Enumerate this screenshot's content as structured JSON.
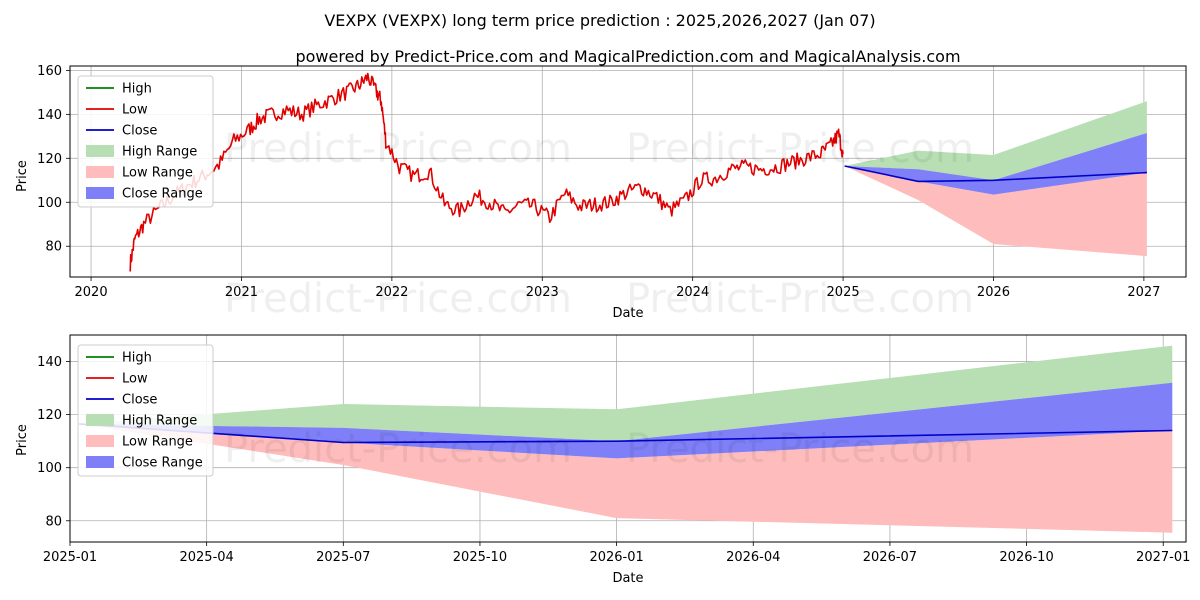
{
  "title_line1": "VEXPX (VEXPX) long term price prediction : 2025,2026,2027 (Jan 07)",
  "title_line2": "powered by Predict-Price.com and MagicalPrediction.com and MagicalAnalysis.com",
  "watermark": "Predict-Price.com",
  "colors": {
    "high": "#008000",
    "low": "#e00000",
    "close": "#0000cc",
    "high_range": "#b7dfb3",
    "low_range": "#ffbcbc",
    "close_range": "#7f7ff7"
  },
  "legend": [
    "High",
    "Low",
    "Close",
    "High Range",
    "Low Range",
    "Close Range"
  ],
  "chart_data": [
    {
      "type": "line",
      "name": "history-and-forecast",
      "xlabel": "Date",
      "ylabel": "Price",
      "xlim": [
        2019.86,
        2027.28
      ],
      "ylim": [
        66,
        162
      ],
      "x_ticks": [
        2020,
        2021,
        2022,
        2023,
        2024,
        2025,
        2026,
        2027
      ],
      "x_tick_labels": [
        "2020",
        "2021",
        "2022",
        "2023",
        "2024",
        "2025",
        "2026",
        "2027"
      ],
      "y_ticks": [
        80,
        100,
        120,
        140,
        160
      ],
      "y_tick_labels": [
        "80",
        "100",
        "120",
        "140",
        "160"
      ],
      "grid": true,
      "legend_position": "top-left",
      "history_close": {
        "x": [
          2020.26,
          2020.29,
          2020.35,
          2020.45,
          2020.55,
          2020.65,
          2020.75,
          2020.85,
          2020.95,
          2021.05,
          2021.12,
          2021.2,
          2021.3,
          2021.4,
          2021.5,
          2021.6,
          2021.7,
          2021.78,
          2021.84,
          2021.9,
          2021.93,
          2021.96,
          2022.05,
          2022.15,
          2022.25,
          2022.35,
          2022.45,
          2022.55,
          2022.65,
          2022.75,
          2022.85,
          2022.95,
          2023.05,
          2023.15,
          2023.25,
          2023.35,
          2023.45,
          2023.55,
          2023.65,
          2023.75,
          2023.85,
          2023.95,
          2024.05,
          2024.15,
          2024.25,
          2024.35,
          2024.45,
          2024.55,
          2024.65,
          2024.75,
          2024.85,
          2024.92,
          2024.97,
          2025.0
        ],
        "y": [
          72,
          83,
          90,
          97,
          103,
          108,
          112,
          117,
          128,
          133,
          138,
          140,
          142,
          140,
          144,
          147,
          150,
          153,
          157,
          150,
          146,
          128,
          116,
          112,
          114,
          99,
          96,
          103,
          100,
          95,
          99,
          98,
          93,
          104,
          98,
          99,
          100,
          104,
          107,
          103,
          96,
          101,
          110,
          111,
          115,
          116,
          115,
          116,
          118,
          120,
          122,
          126,
          131,
          122
        ]
      },
      "forecast": {
        "x": [
          2025.01,
          2025.5,
          2026.0,
          2027.02
        ],
        "close": [
          116.5,
          109.5,
          110.0,
          113.5
        ],
        "high_range_upper": [
          116.5,
          123.5,
          121.5,
          146.0
        ],
        "high_range_lower": [
          116.5,
          115.0,
          110.0,
          131.5
        ],
        "close_range_upper": [
          116.5,
          115.0,
          110.0,
          131.5
        ],
        "close_range_lower": [
          116.5,
          109.5,
          103.5,
          113.5
        ],
        "low_range_upper": [
          116.5,
          109.5,
          103.5,
          113.5
        ],
        "low_range_lower": [
          116.5,
          101.0,
          81.0,
          75.5
        ]
      }
    },
    {
      "type": "line",
      "name": "forecast-zoom",
      "xlabel": "Date",
      "ylabel": "Price",
      "xlim": [
        0,
        24.5
      ],
      "ylim": [
        72,
        150
      ],
      "x_ticks": [
        0,
        3,
        6,
        9,
        12,
        15,
        18,
        21,
        24
      ],
      "x_tick_labels": [
        "2025-01",
        "2025-04",
        "2025-07",
        "2025-10",
        "2026-01",
        "2026-04",
        "2026-07",
        "2026-10",
        "2027-01"
      ],
      "y_ticks": [
        80,
        100,
        120,
        140
      ],
      "y_tick_labels": [
        "80",
        "100",
        "120",
        "140"
      ],
      "grid": true,
      "legend_position": "top-left",
      "forecast": {
        "x": [
          0.2,
          6.0,
          12.0,
          24.2
        ],
        "close": [
          116.5,
          109.5,
          110.0,
          114.0
        ],
        "high_range_upper": [
          116.5,
          124.0,
          122.0,
          146.0
        ],
        "high_range_lower": [
          116.5,
          115.0,
          110.0,
          132.0
        ],
        "close_range_upper": [
          116.5,
          115.0,
          110.0,
          132.0
        ],
        "close_range_lower": [
          116.5,
          109.5,
          103.5,
          114.0
        ],
        "low_range_upper": [
          116.5,
          109.5,
          103.5,
          114.0
        ],
        "low_range_lower": [
          116.5,
          101.0,
          81.0,
          75.5
        ]
      }
    }
  ]
}
